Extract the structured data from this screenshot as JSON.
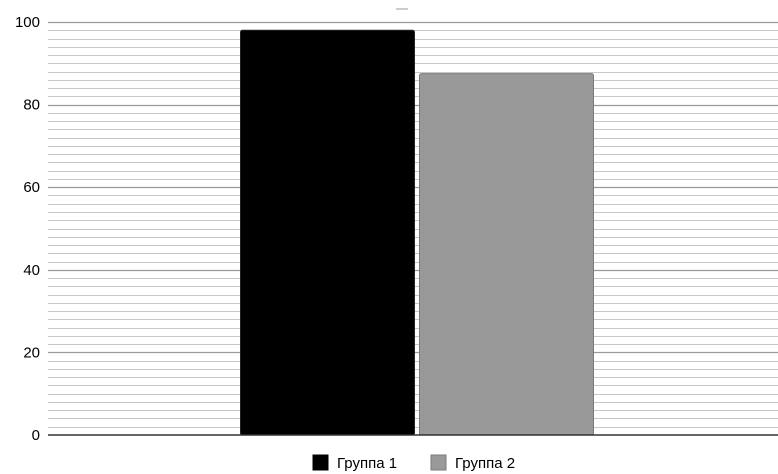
{
  "chart_data": {
    "type": "bar",
    "title": "",
    "xlabel": "",
    "ylabel": "",
    "categories": [
      ""
    ],
    "series": [
      {
        "name": "Группа 1",
        "values": [
          98
        ],
        "color": "#000000"
      },
      {
        "name": "Группа 2",
        "values": [
          87.5
        ],
        "color": "#999999"
      }
    ],
    "ylim": [
      0,
      100
    ],
    "yticks": [
      0,
      20,
      40,
      60,
      80,
      100
    ],
    "grid": true,
    "legend": "bottom-center",
    "colors": {
      "grid_minor": "#b5b5b5",
      "grid_major": "#9a9a9a",
      "axis": "#333333"
    }
  }
}
